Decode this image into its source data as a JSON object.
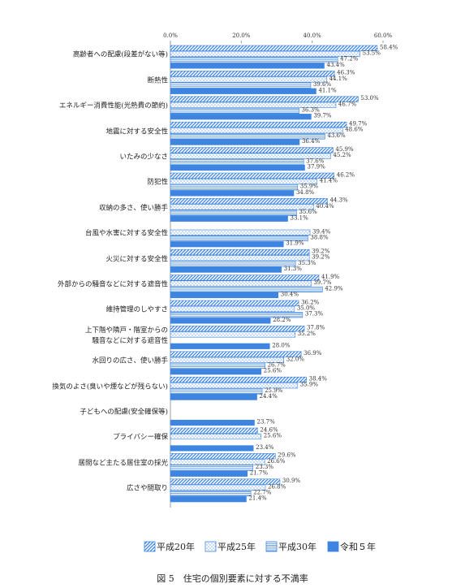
{
  "chart_data": {
    "type": "bar",
    "orientation": "horizontal",
    "caption": "図 5　住宅の個別要素に対する不満率",
    "categories": [
      "高齢者への配慮(段差がない等)",
      "断熱性",
      "エネルギー消費性能(光熱費の節約)",
      "地震に対する安全性",
      "いたみの少なさ",
      "防犯性",
      "収納の多さ、使い勝手",
      "台風や水害に対する安全性",
      "火災に対する安全性",
      "外部からの騒音などに対する遮音性",
      "維持管理のしやすさ",
      "上下階や隣戸・階室からの\n騒音などに対する遮音性",
      "水回りの広さ、使い勝手",
      "換気のよさ(臭いや煙などが残らない)",
      "子どもへの配慮(安全確保等)",
      "プライバシー確保",
      "居間など主たる居住室の採光",
      "広さや間取り"
    ],
    "series": [
      {
        "name": "平成20年",
        "color": "#3d85e0",
        "pattern": "diagonal",
        "values": [
          58.4,
          46.3,
          53.0,
          49.7,
          45.9,
          46.2,
          44.3,
          null,
          39.2,
          41.9,
          36.2,
          37.8,
          36.9,
          38.4,
          null,
          24.6,
          29.6,
          30.9
        ],
        "value_labels": [
          "58.4%",
          "46.3%",
          "53.0%",
          "49.7%",
          "45.9%",
          "46.2%",
          "44.3%",
          null,
          "39.2%",
          "41.9%",
          "36.2%",
          "37.8%",
          "36.9%",
          "38.4%",
          null,
          "24.6%",
          "29.6%",
          "30.9%"
        ]
      },
      {
        "name": "平成25年",
        "color": "#3d85e0",
        "pattern": "dots",
        "values": [
          53.5,
          44.1,
          46.7,
          48.6,
          45.2,
          41.4,
          40.4,
          39.4,
          39.2,
          39.7,
          35.0,
          35.2,
          32.0,
          35.9,
          null,
          25.6,
          26.6,
          26.8
        ],
        "value_labels": [
          "53.5%",
          "44.1%",
          "46.7%",
          "48.6%",
          "45.2%",
          "41.4%",
          "40.4%",
          "39.4%",
          "39.2%",
          "39.7%",
          "35.0%",
          "35.2%",
          "32.0%",
          "35.9%",
          null,
          "25.6%",
          "26.6%",
          "26.8%"
        ]
      },
      {
        "name": "平成30年",
        "color": "#3d85e0",
        "pattern": "horizontal",
        "values": [
          47.2,
          39.6,
          36.3,
          43.6,
          37.6,
          35.9,
          35.6,
          38.8,
          35.3,
          42.9,
          37.3,
          null,
          26.7,
          25.9,
          null,
          null,
          23.3,
          22.7
        ],
        "value_labels": [
          "47.2%",
          "39.6%",
          "36.3%",
          "43.6%",
          "37.6%",
          "35.9%",
          "35.6%",
          "38.8%",
          "35.3%",
          "42.9%",
          "37.3%",
          null,
          "26.7%",
          "25.9%",
          null,
          null,
          "23.3%",
          "22.7%"
        ]
      },
      {
        "name": "令和５年",
        "color": "#3d85e0",
        "pattern": "solid",
        "values": [
          43.4,
          41.1,
          39.7,
          36.4,
          37.9,
          34.8,
          33.1,
          31.9,
          31.3,
          30.4,
          28.2,
          28.0,
          25.6,
          24.4,
          23.7,
          23.4,
          21.7,
          21.4
        ],
        "value_labels": [
          "43.4%",
          "41.1%",
          "39.7%",
          "36.4%",
          "37.9%",
          "34.8%",
          "33.1%",
          "31.9%",
          "31.3%",
          "30.4%",
          "28.2%",
          "28.0%",
          "25.6%",
          "24.4%",
          "23.7%",
          "23.4%",
          "21.7%",
          "21.4%"
        ]
      }
    ],
    "xlim": [
      0,
      60
    ],
    "xticks": [
      {
        "value": 0,
        "label": "0.0%"
      },
      {
        "value": 20,
        "label": "20.0%"
      },
      {
        "value": 40,
        "label": "40.0%"
      },
      {
        "value": 60,
        "label": "60.0%"
      }
    ],
    "grid": false
  }
}
